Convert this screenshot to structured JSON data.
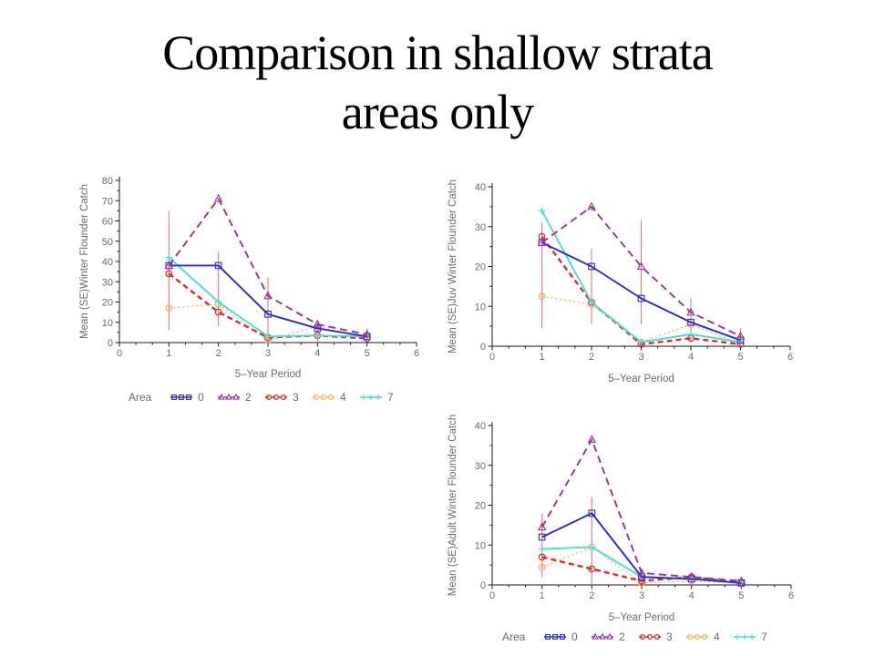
{
  "slide": {
    "title_line1": "Comparison in shallow strata",
    "title_line2": "areas only"
  },
  "chart_data": [
    {
      "type": "line",
      "title": "",
      "ylabel": "Mean (SE)Winter Flounder Catch",
      "xlabel": "5–Year Period",
      "xlim": [
        0,
        6
      ],
      "ylim": [
        0,
        80
      ],
      "xticks": [
        0,
        1,
        2,
        3,
        4,
        5,
        6
      ],
      "yticks": [
        0,
        10,
        20,
        30,
        40,
        50,
        60,
        70,
        80
      ],
      "grid": false,
      "legend_title": "Area",
      "show_legend": true,
      "x": [
        1,
        2,
        3,
        4,
        5
      ],
      "series": [
        {
          "name": "Area 0",
          "legend_label": "0",
          "color": "#2b2bcf",
          "line": "solid",
          "marker": "square",
          "values": [
            38,
            38,
            14,
            7,
            3
          ]
        },
        {
          "name": "Area 2",
          "legend_label": "2",
          "color": "#993399",
          "line": "dashed",
          "marker": "triangle",
          "values": [
            38,
            71,
            23,
            9,
            4
          ]
        },
        {
          "name": "Area 3",
          "legend_label": "3",
          "color": "#e62525",
          "line": "dashed",
          "marker": "circle",
          "values": [
            34,
            15,
            2.5,
            3.5,
            2
          ]
        },
        {
          "name": "Area 4",
          "legend_label": "4",
          "color": "#ffb061",
          "line": "dotted",
          "marker": "circle",
          "values": [
            17,
            19,
            1,
            8,
            2
          ]
        },
        {
          "name": "Area 7",
          "legend_label": "7",
          "color": "#45e0da",
          "line": "solid",
          "marker": "plus",
          "values": [
            42,
            20,
            3,
            3.5,
            3
          ]
        }
      ],
      "error_bars": {
        "color": "#f07878",
        "points": [
          {
            "x": 1,
            "low": 6,
            "high": 65
          },
          {
            "x": 2,
            "low": 8,
            "high": 45
          },
          {
            "x": 3,
            "low": 0,
            "high": 32
          },
          {
            "x": 4,
            "low": 0,
            "high": 11
          },
          {
            "x": 5,
            "low": 0,
            "high": 7
          }
        ]
      }
    },
    {
      "type": "line",
      "title": "",
      "ylabel": "Mean (SE)Juv Winter Flounder Catch",
      "xlabel": "5–Year Period",
      "xlim": [
        0,
        6
      ],
      "ylim": [
        0,
        40
      ],
      "xticks": [
        0,
        1,
        2,
        3,
        4,
        5,
        6
      ],
      "yticks": [
        0,
        10,
        20,
        30,
        40
      ],
      "grid": false,
      "legend_title": "Area",
      "show_legend": false,
      "x": [
        1,
        2,
        3,
        4,
        5
      ],
      "series": [
        {
          "name": "Area 0",
          "legend_label": "0",
          "color": "#2b2bcf",
          "line": "solid",
          "marker": "square",
          "values": [
            26,
            20,
            12,
            6,
            1.5
          ]
        },
        {
          "name": "Area 2",
          "legend_label": "2",
          "color": "#993399",
          "line": "dashed",
          "marker": "triangle",
          "values": [
            26,
            35,
            20,
            8.5,
            2.5
          ]
        },
        {
          "name": "Area 3",
          "legend_label": "3",
          "color": "#e62525",
          "line": "dashed",
          "marker": "circle",
          "values": [
            27.5,
            11,
            0.5,
            2,
            0.5
          ]
        },
        {
          "name": "Area 4",
          "legend_label": "4",
          "color": "#ffb061",
          "line": "dotted",
          "marker": "circle",
          "values": [
            12.5,
            10.5,
            1,
            5.5,
            0.5
          ]
        },
        {
          "name": "Area 7",
          "legend_label": "7",
          "color": "#45e0da",
          "line": "solid",
          "marker": "plus",
          "values": [
            34,
            11,
            1,
            3,
            1
          ]
        }
      ],
      "error_bars": {
        "color": "#f07878",
        "points": [
          {
            "x": 1,
            "low": 4.5,
            "high": 31
          },
          {
            "x": 2,
            "low": 5.5,
            "high": 24.5
          },
          {
            "x": 3,
            "low": 5.5,
            "high": 31.5
          },
          {
            "x": 4,
            "low": 1,
            "high": 12
          },
          {
            "x": 5,
            "low": 0,
            "high": 4.5
          }
        ]
      }
    },
    {
      "type": "line",
      "title": "",
      "ylabel": "Mean (SE)Adult Winter Flounder Catch",
      "xlabel": "5–Year Period",
      "xlim": [
        0,
        6
      ],
      "ylim": [
        0,
        40
      ],
      "xticks": [
        0,
        1,
        2,
        3,
        4,
        5,
        6
      ],
      "yticks": [
        0,
        10,
        20,
        30,
        40
      ],
      "grid": false,
      "legend_title": "Area",
      "show_legend": true,
      "x": [
        1,
        2,
        3,
        4,
        5
      ],
      "series": [
        {
          "name": "Area 0",
          "legend_label": "0",
          "color": "#2b2bcf",
          "line": "solid",
          "marker": "square",
          "values": [
            12,
            18,
            2,
            1.5,
            0.5
          ]
        },
        {
          "name": "Area 2",
          "legend_label": "2",
          "color": "#993399",
          "line": "dashed",
          "marker": "triangle",
          "values": [
            14.5,
            36.5,
            3,
            2,
            1
          ]
        },
        {
          "name": "Area 3",
          "legend_label": "3",
          "color": "#e62525",
          "line": "dashed",
          "marker": "circle",
          "values": [
            7,
            4,
            1,
            2,
            0.5
          ]
        },
        {
          "name": "Area 4",
          "legend_label": "4",
          "color": "#ffb061",
          "line": "dotted",
          "marker": "circle",
          "values": [
            4.5,
            9.5,
            0.5,
            1,
            0.3
          ]
        },
        {
          "name": "Area 7",
          "legend_label": "7",
          "color": "#45e0da",
          "line": "solid",
          "marker": "plus",
          "values": [
            9,
            9.5,
            2,
            1.5,
            0.5
          ]
        }
      ],
      "error_bars": {
        "color": "#f07878",
        "points": [
          {
            "x": 1,
            "low": 2,
            "high": 18
          },
          {
            "x": 2,
            "low": 0,
            "high": 22
          },
          {
            "x": 3,
            "low": 0,
            "high": 4
          },
          {
            "x": 4,
            "low": 0,
            "high": 3
          },
          {
            "x": 5,
            "low": 0,
            "high": 1.5
          }
        ]
      }
    }
  ]
}
